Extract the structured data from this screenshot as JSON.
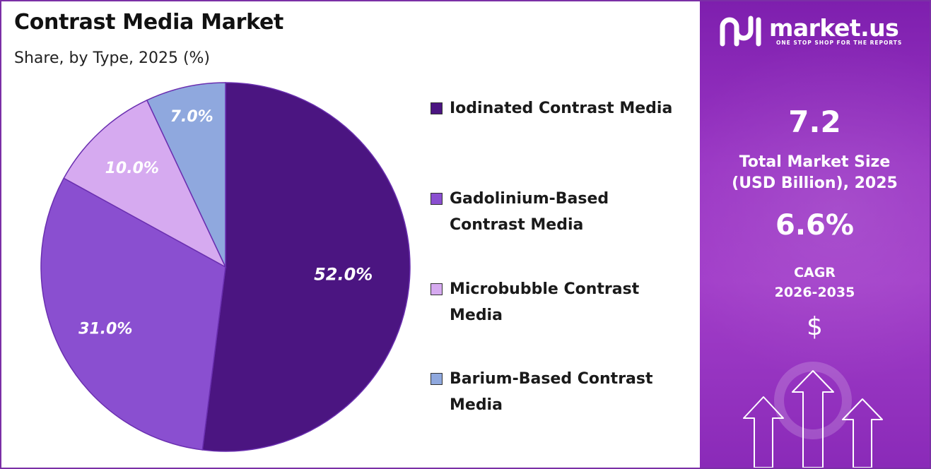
{
  "chart_data": {
    "type": "pie",
    "title": "Contrast Media Market",
    "subtitle": "Share, by Type, 2025 (%)",
    "slices": [
      {
        "label": "Iodinated Contrast Media",
        "value": 52.0,
        "display": "52.0%",
        "color": "#4b1581"
      },
      {
        "label": "Gadolinium-Based Contrast Media",
        "value": 31.0,
        "display": "31.0%",
        "color": "#8a4fd0"
      },
      {
        "label": "Microbubble Contrast Media",
        "value": 10.0,
        "display": "10.0%",
        "color": "#d6aaf0"
      },
      {
        "label": "Barium-Based Contrast Media",
        "value": 7.0,
        "display": "7.0%",
        "color": "#8fa8de"
      }
    ],
    "legend_position": "right"
  },
  "legend": {
    "items": [
      {
        "lines": [
          "Iodinated Contrast Media"
        ]
      },
      {
        "lines": [
          "Gadolinium-Based",
          "Contrast Media"
        ]
      },
      {
        "lines": [
          "Microbubble Contrast",
          "Media"
        ]
      },
      {
        "lines": [
          "Barium-Based Contrast",
          "Media"
        ]
      }
    ]
  },
  "brand": {
    "name": "market.us",
    "tagline": "ONE STOP SHOP FOR THE REPORTS"
  },
  "stats": {
    "market_size_value": "7.2",
    "market_size_label_1": "Total Market Size",
    "market_size_label_2": "(USD Billion), 2025",
    "cagr_value": "6.6%",
    "cagr_label_1": "CAGR",
    "cagr_label_2": "2026-2035",
    "currency_symbol": "$"
  },
  "colors": {
    "panel_gradient_top": "#7e1fae",
    "panel_gradient_bottom": "#8a2ab8",
    "border": "#7b2fa6"
  }
}
